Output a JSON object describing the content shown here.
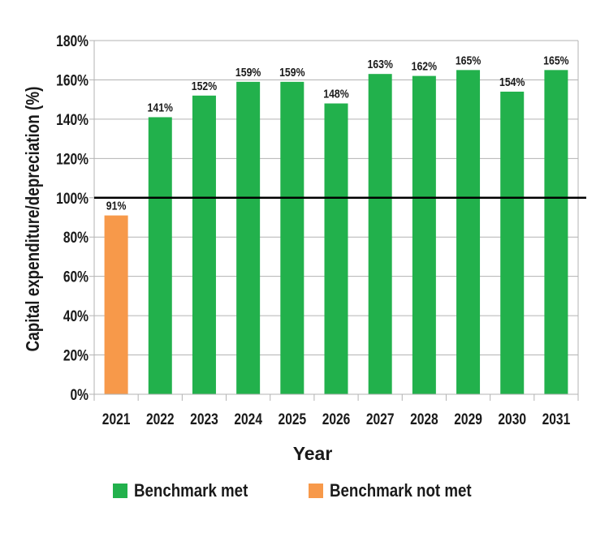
{
  "chart_data": {
    "type": "bar",
    "title": "",
    "xlabel": "Year",
    "ylabel": "Capital expenditure/depreciation (%)",
    "categories": [
      "2021",
      "2022",
      "2023",
      "2024",
      "2025",
      "2026",
      "2027",
      "2028",
      "2029",
      "2030",
      "2031"
    ],
    "values": [
      91,
      141,
      152,
      159,
      159,
      148,
      163,
      162,
      165,
      154,
      165
    ],
    "value_labels": [
      "91%",
      "141%",
      "152%",
      "159%",
      "159%",
      "148%",
      "163%",
      "162%",
      "165%",
      "154%",
      "165%"
    ],
    "benchmark_met": [
      false,
      true,
      true,
      true,
      true,
      true,
      true,
      true,
      true,
      true,
      true
    ],
    "benchmark_line": 100,
    "ylim": [
      0,
      180
    ],
    "yticks": [
      0,
      20,
      40,
      60,
      80,
      100,
      120,
      140,
      160,
      180
    ],
    "ytick_labels": [
      "0%",
      "20%",
      "40%",
      "60%",
      "80%",
      "100%",
      "120%",
      "140%",
      "160%",
      "180%"
    ],
    "grid": true,
    "legend_position": "bottom",
    "colors": {
      "met": "#22b14c",
      "not_met": "#f7994a",
      "benchmark": "#000000",
      "grid": "#b3b3b3"
    }
  },
  "legend": {
    "items": [
      {
        "label": "Benchmark met",
        "color": "#22b14c"
      },
      {
        "label": "Benchmark not met",
        "color": "#f7994a"
      }
    ]
  }
}
